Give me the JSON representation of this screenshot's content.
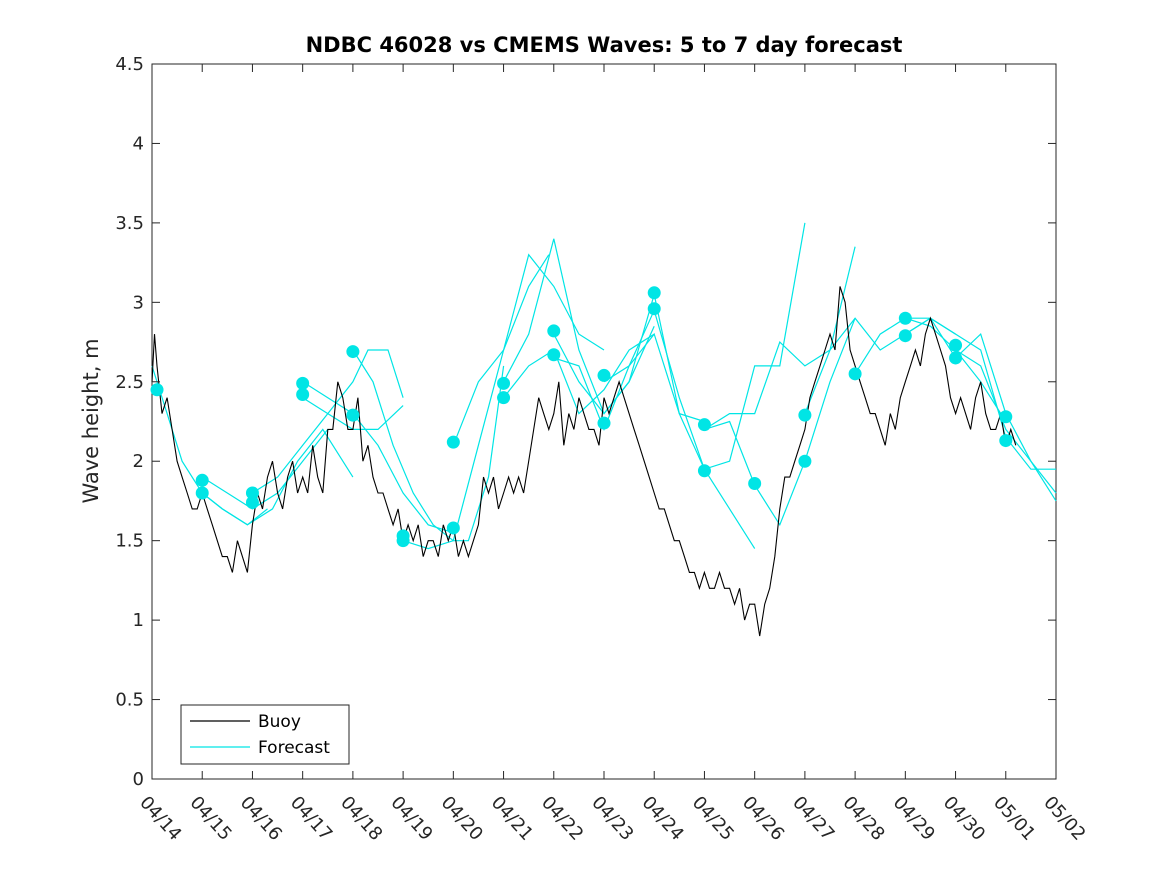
{
  "chart_data": {
    "type": "line",
    "title": "NDBC 46028 vs CMEMS Waves: 5 to 7 day forecast",
    "xlabel": "",
    "ylabel": "Wave height, m",
    "x_tick_labels": [
      "04/14",
      "04/15",
      "04/16",
      "04/17",
      "04/18",
      "04/19",
      "04/20",
      "04/21",
      "04/22",
      "04/23",
      "04/24",
      "04/25",
      "04/26",
      "04/27",
      "04/28",
      "04/29",
      "04/30",
      "05/01",
      "05/02"
    ],
    "y_ticks": [
      0,
      0.5,
      1,
      1.5,
      2,
      2.5,
      3,
      3.5,
      4,
      4.5
    ],
    "y_tick_labels": [
      "0",
      "0.5",
      "1",
      "1.5",
      "2",
      "2.5",
      "3",
      "3.5",
      "4",
      "4.5"
    ],
    "xlim_days": [
      0,
      18
    ],
    "ylim": [
      0,
      4.5
    ],
    "grid": false,
    "legend_position": "bottom-left",
    "legend": [
      "Buoy",
      "Forecast"
    ],
    "colors": {
      "buoy": "#000000",
      "forecast": "#00e5e5",
      "axes": "#262626"
    },
    "series": [
      {
        "name": "Buoy",
        "x_days": [
          0,
          0.05,
          0.1,
          0.2,
          0.3,
          0.4,
          0.5,
          0.6,
          0.7,
          0.8,
          0.9,
          1.0,
          1.1,
          1.2,
          1.3,
          1.4,
          1.5,
          1.6,
          1.7,
          1.8,
          1.9,
          2.0,
          2.1,
          2.2,
          2.3,
          2.4,
          2.5,
          2.6,
          2.7,
          2.8,
          2.9,
          3.0,
          3.1,
          3.2,
          3.3,
          3.4,
          3.5,
          3.6,
          3.7,
          3.8,
          3.9,
          4.0,
          4.1,
          4.2,
          4.3,
          4.4,
          4.5,
          4.6,
          4.7,
          4.8,
          4.9,
          5.0,
          5.1,
          5.2,
          5.3,
          5.4,
          5.5,
          5.6,
          5.7,
          5.8,
          5.9,
          6.0,
          6.1,
          6.2,
          6.3,
          6.4,
          6.5,
          6.6,
          6.7,
          6.8,
          6.9,
          7.0,
          7.1,
          7.2,
          7.3,
          7.4,
          7.5,
          7.6,
          7.7,
          7.8,
          7.9,
          8.0,
          8.1,
          8.2,
          8.3,
          8.4,
          8.5,
          8.6,
          8.7,
          8.8,
          8.9,
          9.0,
          9.1,
          9.2,
          9.3,
          9.4,
          9.5,
          9.6,
          9.7,
          9.8,
          9.9,
          10.0,
          10.1,
          10.2,
          10.3,
          10.4,
          10.5,
          10.6,
          10.7,
          10.8,
          10.9,
          11.0,
          11.1,
          11.2,
          11.3,
          11.4,
          11.5,
          11.6,
          11.7,
          11.8,
          11.9,
          12.0,
          12.1,
          12.2,
          12.3,
          12.4,
          12.5,
          12.6,
          12.7,
          12.8,
          12.9,
          13.0,
          13.1,
          13.2,
          13.3,
          13.4,
          13.5,
          13.6,
          13.7,
          13.8,
          13.9,
          14.0,
          14.1,
          14.2,
          14.3,
          14.4,
          14.5,
          14.6,
          14.7,
          14.8,
          14.9,
          15.0,
          15.1,
          15.2,
          15.3,
          15.4,
          15.5,
          15.6,
          15.7,
          15.8,
          15.9,
          16.0,
          16.1,
          16.2,
          16.3,
          16.4,
          16.5,
          16.6,
          16.7,
          16.8,
          16.9,
          17.0,
          17.1,
          17.2
        ],
        "values": [
          2.5,
          2.8,
          2.6,
          2.3,
          2.4,
          2.2,
          2.0,
          1.9,
          1.8,
          1.7,
          1.7,
          1.8,
          1.7,
          1.6,
          1.5,
          1.4,
          1.4,
          1.3,
          1.5,
          1.4,
          1.3,
          1.6,
          1.8,
          1.7,
          1.9,
          2.0,
          1.8,
          1.7,
          1.9,
          2.0,
          1.8,
          1.9,
          1.8,
          2.1,
          1.9,
          1.8,
          2.2,
          2.2,
          2.5,
          2.4,
          2.2,
          2.2,
          2.4,
          2.0,
          2.1,
          1.9,
          1.8,
          1.8,
          1.7,
          1.6,
          1.7,
          1.5,
          1.6,
          1.5,
          1.6,
          1.4,
          1.5,
          1.5,
          1.4,
          1.6,
          1.5,
          1.6,
          1.4,
          1.5,
          1.4,
          1.5,
          1.6,
          1.9,
          1.8,
          1.9,
          1.7,
          1.8,
          1.9,
          1.8,
          1.9,
          1.8,
          2.0,
          2.2,
          2.4,
          2.3,
          2.2,
          2.3,
          2.5,
          2.1,
          2.3,
          2.2,
          2.4,
          2.3,
          2.2,
          2.2,
          2.1,
          2.4,
          2.3,
          2.4,
          2.5,
          2.4,
          2.3,
          2.2,
          2.1,
          2.0,
          1.9,
          1.8,
          1.7,
          1.7,
          1.6,
          1.5,
          1.5,
          1.4,
          1.3,
          1.3,
          1.2,
          1.3,
          1.2,
          1.2,
          1.3,
          1.2,
          1.2,
          1.1,
          1.2,
          1.0,
          1.1,
          1.1,
          0.9,
          1.1,
          1.2,
          1.4,
          1.7,
          1.9,
          1.9,
          2.0,
          2.1,
          2.2,
          2.4,
          2.5,
          2.6,
          2.7,
          2.8,
          2.7,
          3.1,
          3.0,
          2.7,
          2.6,
          2.5,
          2.4,
          2.3,
          2.3,
          2.2,
          2.1,
          2.3,
          2.2,
          2.4,
          2.5,
          2.6,
          2.7,
          2.6,
          2.8,
          2.9,
          2.8,
          2.7,
          2.6,
          2.4,
          2.3,
          2.4,
          2.3,
          2.2,
          2.4,
          2.5,
          2.3,
          2.2,
          2.2,
          2.3,
          2.1,
          2.2,
          2.1
        ]
      },
      {
        "name": "Forecast",
        "runs": [
          {
            "x_days": [
              0,
              0.3,
              0.6,
              1.0,
              1.4,
              1.9,
              2.3
            ],
            "values": [
              2.6,
              2.3,
              2.0,
              1.8,
              1.7,
              1.6,
              1.7
            ]
          },
          {
            "x_days": [
              1.0,
              1.5,
              2.0,
              2.5,
              3.0,
              3.5
            ],
            "values": [
              1.9,
              1.8,
              1.7,
              1.8,
              2.0,
              2.2
            ]
          },
          {
            "x_days": [
              1.0,
              1.4,
              1.9,
              2.4,
              2.9,
              3.4,
              4.0
            ],
            "values": [
              1.8,
              1.7,
              1.6,
              1.7,
              2.0,
              2.2,
              1.9
            ]
          },
          {
            "x_days": [
              2.0,
              2.5,
              3.0,
              3.5,
              4.0,
              4.3,
              4.7,
              5.0
            ],
            "values": [
              1.8,
              1.9,
              2.1,
              2.3,
              2.5,
              2.7,
              2.7,
              2.4
            ]
          },
          {
            "x_days": [
              3.0,
              3.5,
              4.0,
              4.5,
              5.0,
              5.5,
              6.0
            ],
            "values": [
              2.5,
              2.4,
              2.3,
              2.1,
              1.8,
              1.6,
              1.55
            ]
          },
          {
            "x_days": [
              3.0,
              3.5,
              4.0,
              4.5,
              5.0
            ],
            "values": [
              2.4,
              2.3,
              2.2,
              2.2,
              2.35
            ]
          },
          {
            "x_days": [
              4.0,
              4.4,
              4.8,
              5.2,
              5.6,
              6.0,
              6.3,
              6.7,
              7.0
            ],
            "values": [
              2.7,
              2.5,
              2.1,
              1.8,
              1.6,
              1.5,
              1.5,
              1.9,
              2.6
            ]
          },
          {
            "x_days": [
              5.0,
              5.5,
              6.0,
              6.5,
              7.0,
              7.5,
              7.9
            ],
            "values": [
              1.5,
              1.45,
              1.5,
              2.1,
              2.7,
              3.1,
              3.3
            ]
          },
          {
            "x_days": [
              6.0,
              6.5,
              7.0,
              7.5,
              8.0,
              8.5,
              9.0
            ],
            "values": [
              2.1,
              2.5,
              2.7,
              3.3,
              3.1,
              2.8,
              2.7
            ]
          },
          {
            "x_days": [
              7.0,
              7.5,
              8.0,
              8.5,
              9.0,
              9.5,
              10.0
            ],
            "values": [
              2.5,
              2.8,
              3.4,
              2.7,
              2.3,
              2.5,
              2.85
            ]
          },
          {
            "x_days": [
              7.0,
              7.5,
              8.0,
              8.5,
              9.0,
              9.5,
              10.0
            ],
            "values": [
              2.4,
              2.6,
              2.7,
              2.3,
              2.45,
              2.7,
              2.8
            ]
          },
          {
            "x_days": [
              8.0,
              8.5,
              9.0,
              9.5,
              10.0,
              10.5,
              11.0
            ],
            "values": [
              2.8,
              2.5,
              2.3,
              2.5,
              3.05,
              2.3,
              2.25
            ]
          },
          {
            "x_days": [
              8.0,
              8.5,
              9.0,
              9.5,
              10.0,
              10.5,
              11.0,
              11.5,
              12.0
            ],
            "values": [
              2.65,
              2.6,
              2.2,
              2.6,
              2.95,
              2.4,
              1.95,
              1.7,
              1.45
            ]
          },
          {
            "x_days": [
              9.0,
              9.5,
              10.0,
              10.5,
              11.0,
              11.5,
              12.0,
              12.5,
              13.0
            ],
            "values": [
              2.5,
              2.6,
              2.8,
              2.3,
              1.95,
              2.0,
              2.6,
              2.6,
              3.5
            ]
          },
          {
            "x_days": [
              11.0,
              11.5,
              12.0,
              12.5,
              13.0,
              13.5,
              14.0
            ],
            "values": [
              2.2,
              2.25,
              1.85,
              1.6,
              2.0,
              2.5,
              2.9
            ]
          },
          {
            "x_days": [
              11.0,
              11.5,
              12.0,
              12.5,
              13.0,
              13.5,
              14.0
            ],
            "values": [
              2.2,
              2.3,
              2.3,
              2.75,
              2.6,
              2.7,
              3.35
            ]
          },
          {
            "x_days": [
              13.0,
              13.5,
              14.0,
              14.5,
              15.0,
              15.5,
              16.0
            ],
            "values": [
              2.3,
              2.7,
              2.9,
              2.7,
              2.8,
              2.9,
              2.8
            ]
          },
          {
            "x_days": [
              14.0,
              14.5,
              15.0,
              15.5,
              16.0,
              16.5,
              17.0
            ],
            "values": [
              2.55,
              2.8,
              2.9,
              2.85,
              2.7,
              2.5,
              2.25
            ]
          },
          {
            "x_days": [
              15.0,
              15.5,
              16.0,
              16.5,
              17.0,
              17.5,
              18.0
            ],
            "values": [
              2.8,
              2.9,
              2.65,
              2.8,
              2.3,
              2.0,
              1.75
            ]
          },
          {
            "x_days": [
              15.0,
              15.5,
              16.0,
              16.5,
              17.0,
              17.5,
              18.0
            ],
            "values": [
              2.9,
              2.9,
              2.8,
              2.7,
              2.15,
              1.95,
              1.95
            ]
          },
          {
            "x_days": [
              16.0,
              16.5,
              17.0,
              17.5,
              18.0
            ],
            "values": [
              2.7,
              2.6,
              2.2,
              2.0,
              1.8
            ]
          }
        ],
        "markers": {
          "x_days": [
            0.1,
            1.0,
            1.0,
            2.0,
            2.0,
            3.0,
            3.0,
            4.0,
            4.0,
            5.0,
            5.0,
            6.0,
            6.0,
            7.0,
            7.0,
            8.0,
            8.0,
            9.0,
            9.0,
            10.0,
            10.0,
            11.0,
            11.0,
            12.0,
            13.0,
            13.0,
            14.0,
            15.0,
            15.0,
            16.0,
            16.0,
            17.0,
            17.0
          ],
          "values": [
            2.45,
            1.88,
            1.8,
            1.8,
            1.74,
            2.49,
            2.42,
            2.69,
            2.29,
            1.53,
            1.5,
            2.12,
            1.58,
            2.49,
            2.4,
            2.82,
            2.67,
            2.54,
            2.24,
            3.06,
            2.96,
            2.23,
            1.94,
            1.86,
            2.29,
            2.0,
            2.55,
            2.9,
            2.79,
            2.73,
            2.65,
            2.28,
            2.13
          ]
        }
      }
    ]
  }
}
